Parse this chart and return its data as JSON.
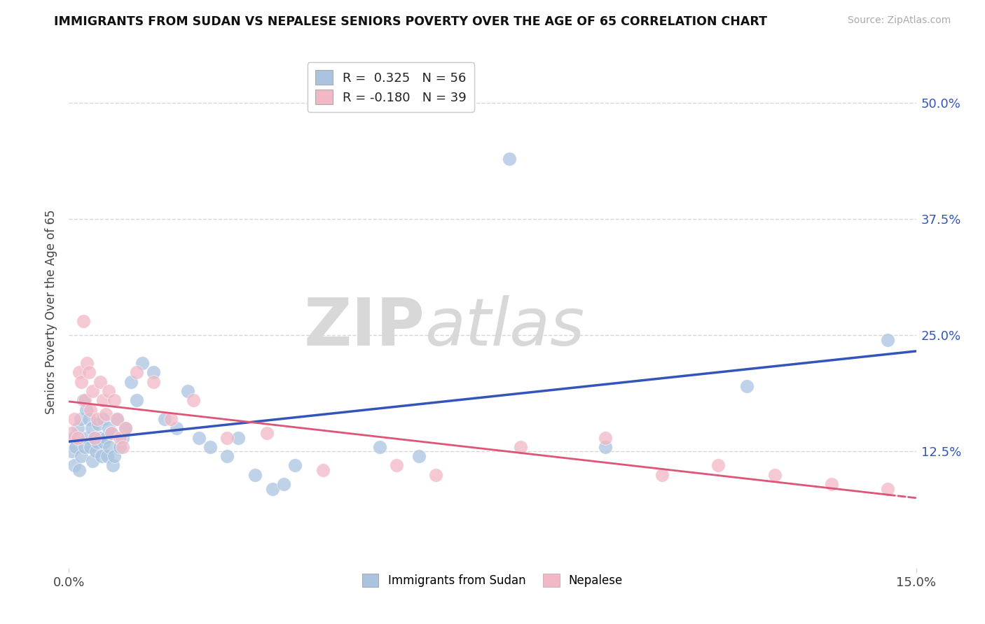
{
  "title": "IMMIGRANTS FROM SUDAN VS NEPALESE SENIORS POVERTY OVER THE AGE OF 65 CORRELATION CHART",
  "source": "Source: ZipAtlas.com",
  "ylabel": "Seniors Poverty Over the Age of 65",
  "xlim": [
    0.0,
    15.0
  ],
  "ylim": [
    0.0,
    55.0
  ],
  "ytick_vals": [
    12.5,
    25.0,
    37.5,
    50.0
  ],
  "legend1_r": " 0.325",
  "legend1_n": "56",
  "legend2_r": "-0.180",
  "legend2_n": "39",
  "blue_scatter_color": "#aac4e0",
  "pink_scatter_color": "#f2b8c6",
  "blue_line_color": "#3355bb",
  "pink_line_color": "#dd5577",
  "grid_color": "#cccccc",
  "watermark_color": "#d8d8d8",
  "background_color": "#ffffff",
  "sudan_x": [
    0.05,
    0.08,
    0.1,
    0.12,
    0.15,
    0.18,
    0.2,
    0.22,
    0.25,
    0.28,
    0.3,
    0.32,
    0.35,
    0.38,
    0.4,
    0.42,
    0.45,
    0.48,
    0.5,
    0.52,
    0.55,
    0.58,
    0.6,
    0.62,
    0.65,
    0.68,
    0.7,
    0.72,
    0.75,
    0.78,
    0.8,
    0.85,
    0.9,
    0.95,
    1.0,
    1.1,
    1.2,
    1.3,
    1.5,
    1.7,
    1.9,
    2.1,
    2.3,
    2.5,
    2.8,
    3.0,
    3.3,
    3.6,
    3.8,
    4.0,
    5.5,
    6.2,
    7.8,
    9.5,
    12.0,
    14.5
  ],
  "sudan_y": [
    12.5,
    14.0,
    11.0,
    13.0,
    15.0,
    10.5,
    16.0,
    12.0,
    18.0,
    13.0,
    17.0,
    14.0,
    16.0,
    13.0,
    15.0,
    11.5,
    14.0,
    12.5,
    13.5,
    15.5,
    14.0,
    12.0,
    16.0,
    13.5,
    14.0,
    12.0,
    15.0,
    13.0,
    14.5,
    11.0,
    12.0,
    16.0,
    13.0,
    14.0,
    15.0,
    20.0,
    18.0,
    22.0,
    21.0,
    16.0,
    15.0,
    19.0,
    14.0,
    13.0,
    12.0,
    14.0,
    10.0,
    8.5,
    9.0,
    11.0,
    13.0,
    12.0,
    44.0,
    13.0,
    19.5,
    24.5
  ],
  "nepal_x": [
    0.05,
    0.1,
    0.15,
    0.18,
    0.22,
    0.25,
    0.28,
    0.32,
    0.35,
    0.38,
    0.42,
    0.45,
    0.5,
    0.55,
    0.6,
    0.65,
    0.7,
    0.75,
    0.8,
    0.85,
    0.9,
    0.95,
    1.0,
    1.2,
    1.5,
    1.8,
    2.2,
    2.8,
    3.5,
    4.5,
    5.8,
    6.5,
    8.0,
    9.5,
    10.5,
    11.5,
    12.5,
    13.5,
    14.5
  ],
  "nepal_y": [
    14.5,
    16.0,
    14.0,
    21.0,
    20.0,
    26.5,
    18.0,
    22.0,
    21.0,
    17.0,
    19.0,
    14.0,
    16.0,
    20.0,
    18.0,
    16.5,
    19.0,
    14.5,
    18.0,
    16.0,
    14.0,
    13.0,
    15.0,
    21.0,
    20.0,
    16.0,
    18.0,
    14.0,
    14.5,
    10.5,
    11.0,
    10.0,
    13.0,
    14.0,
    10.0,
    11.0,
    10.0,
    9.0,
    8.5
  ]
}
